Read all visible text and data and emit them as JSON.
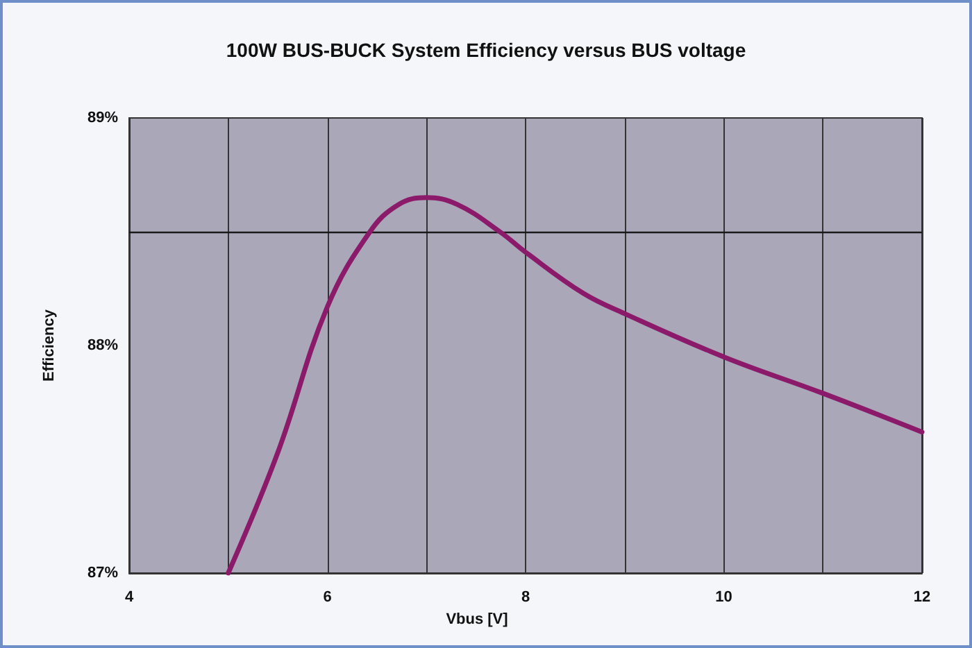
{
  "chart_data": {
    "type": "line",
    "title": "100W BUS-BUCK System Efficiency versus BUS voltage",
    "xlabel": "Vbus [V]",
    "ylabel": "Efficiency",
    "x": [
      5.0,
      5.5,
      6.0,
      6.43,
      6.72,
      7.0,
      7.31,
      7.74,
      8.0,
      8.58,
      9.0,
      10.0,
      11.0,
      12.0
    ],
    "series": [
      {
        "color": "#8b1a6b",
        "values": [
          87.0,
          87.53,
          88.17,
          88.5,
          88.62,
          88.65,
          88.62,
          88.5,
          88.41,
          88.23,
          88.14,
          87.95,
          87.79,
          87.62
        ]
      }
    ],
    "xlim": [
      4,
      12
    ],
    "xticks": [
      4,
      {
        "value": 5,
        "label": null
      },
      6,
      {
        "value": 7,
        "label": null
      },
      8,
      {
        "value": 9,
        "label": null
      },
      10,
      {
        "value": 11,
        "label": null
      },
      12
    ],
    "ylim": [
      87,
      89
    ],
    "yticks": [
      {
        "value": 87,
        "label": "87%"
      },
      {
        "value": 88,
        "label": "88%"
      },
      {
        "value": 89,
        "label": "89%"
      }
    ],
    "ref_lines": [
      {
        "axis": "y",
        "value": 88.5,
        "color": "#1a1a1a"
      }
    ],
    "grid": "x",
    "marker": "none",
    "line_style": "solid"
  }
}
